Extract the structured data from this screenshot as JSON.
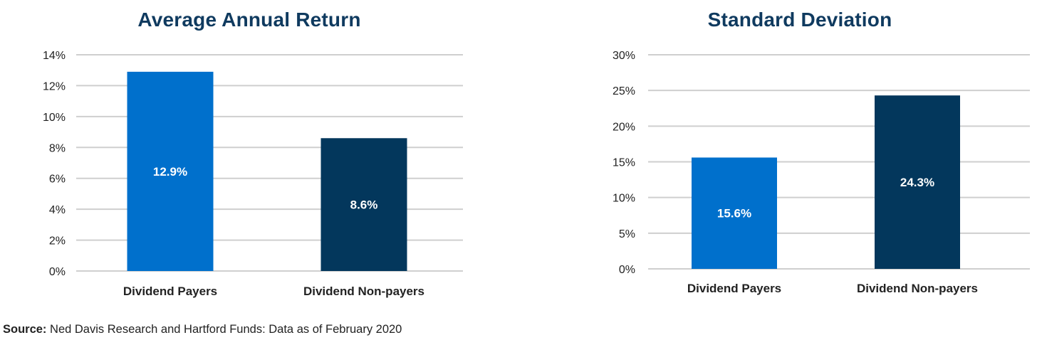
{
  "source": {
    "label": "Source:",
    "text": "Ned Davis Research and Hartford Funds: Data as of February 2020"
  },
  "colors": {
    "payers": "#0070cc",
    "non_payers": "#03375c"
  },
  "chart_data": [
    {
      "type": "bar",
      "title": "Average Annual Return",
      "categories": [
        "Dividend Payers",
        "Dividend Non-payers"
      ],
      "values": [
        12.9,
        8.6
      ],
      "value_labels": [
        "12.9%",
        "8.6%"
      ],
      "ylim": [
        0,
        14
      ],
      "yticks": [
        0,
        2,
        4,
        6,
        8,
        10,
        12,
        14
      ],
      "ytick_labels": [
        "0%",
        "2%",
        "4%",
        "6%",
        "8%",
        "10%",
        "12%",
        "14%"
      ],
      "grid": true
    },
    {
      "type": "bar",
      "title": "Standard Deviation",
      "categories": [
        "Dividend Payers",
        "Dividend Non-payers"
      ],
      "values": [
        15.6,
        24.3
      ],
      "value_labels": [
        "15.6%",
        "24.3%"
      ],
      "ylim": [
        0,
        30
      ],
      "yticks": [
        0,
        5,
        10,
        15,
        20,
        25,
        30
      ],
      "ytick_labels": [
        "0%",
        "5%",
        "10%",
        "15%",
        "20%",
        "25%",
        "30%"
      ],
      "grid": true
    }
  ]
}
